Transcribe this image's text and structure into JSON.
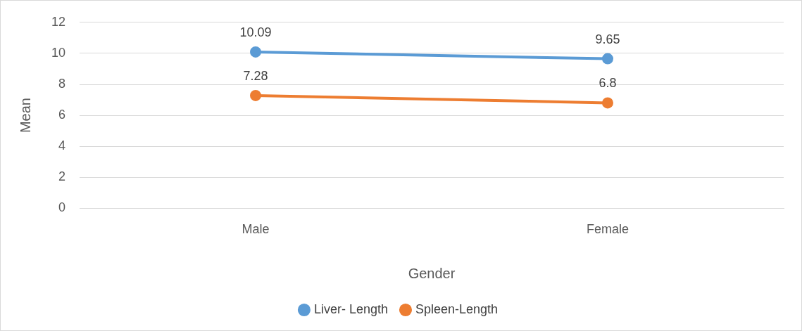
{
  "chart_data": {
    "type": "line",
    "xlabel": "Gender",
    "ylabel": "Mean",
    "categories": [
      "Male",
      "Female"
    ],
    "series": [
      {
        "name": "Liver- Length",
        "color": "#5b9bd5",
        "values": [
          10.09,
          9.65
        ]
      },
      {
        "name": "Spleen-Length",
        "color": "#ed7d31",
        "values": [
          7.28,
          6.8
        ]
      }
    ],
    "ylim": [
      0,
      12
    ],
    "yticks": [
      0,
      2,
      4,
      6,
      8,
      10,
      12
    ],
    "grid": "y",
    "legend": "bottom",
    "marker": "circle",
    "line_style": "solid",
    "data_labels": true
  }
}
